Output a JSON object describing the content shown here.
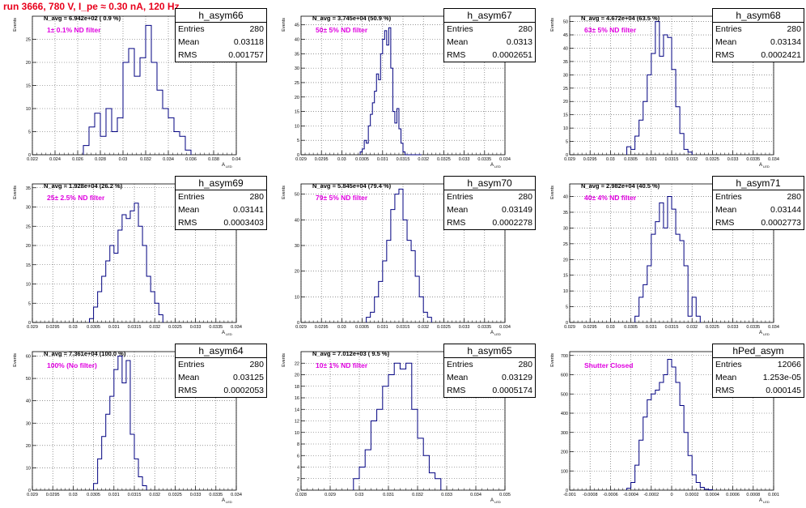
{
  "header": {
    "title": "run 3666,   780 V, I_pe ≈ 0.30 nA, 120 Hz"
  },
  "colors": {
    "title": "#e8001c",
    "filter_label": "#e000e0",
    "histogram": "#000080",
    "grid": "#555555"
  },
  "axis_label_y": "Events",
  "axis_label_x": "A",
  "axis_label_x_sub": "LED",
  "stats_labels": {
    "entries": "Entries",
    "mean": "Mean",
    "rms": "RMS"
  },
  "chart_data": [
    {
      "type": "histogram",
      "name": "h_asym66",
      "navg": "N_avg = 6.942e+02 ( 0.9 %)",
      "filter": "1± 0.1% ND filter",
      "entries": "280",
      "mean": "0.03118",
      "rms": "0.001757",
      "xlim": [
        0.022,
        0.04
      ],
      "ylim": [
        0,
        30
      ],
      "xticks": [
        0.022,
        0.024,
        0.026,
        0.028,
        0.03,
        0.032,
        0.034,
        0.036,
        0.038,
        0.04
      ],
      "xtick_labels": [
        "0.022",
        "0.024",
        "0.026",
        "0.028",
        "0.03",
        "0.032",
        "0.034",
        "0.036",
        "0.038",
        "0.04"
      ],
      "yticks": [
        0,
        5,
        10,
        15,
        20,
        25
      ],
      "ytick_labels": [
        "0",
        "5",
        "10",
        "15",
        "20",
        "25"
      ],
      "bin_edges": [
        0.0265,
        0.027,
        0.0275,
        0.028,
        0.0285,
        0.029,
        0.0295,
        0.03,
        0.0305,
        0.031,
        0.0315,
        0.032,
        0.0325,
        0.033,
        0.0335,
        0.034,
        0.0345,
        0.035,
        0.0355,
        0.036
      ],
      "counts": [
        2,
        6,
        9,
        4,
        10,
        5,
        8,
        20,
        23,
        17,
        21,
        28,
        20,
        14,
        10,
        8,
        5,
        4,
        1
      ]
    },
    {
      "type": "histogram",
      "name": "h_asym67",
      "navg": "N_avg = 3.745e+04 (50.9 %)",
      "filter": "50± 5% ND filter",
      "entries": "280",
      "mean": "0.0313",
      "rms": "0.0002651",
      "xlim": [
        0.029,
        0.034
      ],
      "ylim": [
        0,
        48
      ],
      "xticks": [
        0.029,
        0.0295,
        0.03,
        0.0305,
        0.031,
        0.0315,
        0.032,
        0.0325,
        0.033,
        0.0335,
        0.034
      ],
      "xtick_labels": [
        "0.029",
        "0.0295",
        "0.03",
        "0.0305",
        "0.031",
        "0.0315",
        "0.032",
        "0.0325",
        "0.033",
        "0.0335",
        "0.034"
      ],
      "yticks": [
        0,
        5,
        10,
        15,
        20,
        25,
        30,
        35,
        40,
        45
      ],
      "ytick_labels": [
        "0",
        "5",
        "10",
        "15",
        "20",
        "25",
        "30",
        "35",
        "40",
        "45"
      ],
      "bin_edges": [
        0.03045,
        0.0305,
        0.03055,
        0.0306,
        0.03065,
        0.0307,
        0.03075,
        0.0308,
        0.03085,
        0.0309,
        0.03095,
        0.031,
        0.03105,
        0.0311,
        0.03115,
        0.0312,
        0.03125,
        0.0313,
        0.03135,
        0.0314,
        0.03145,
        0.0315,
        0.03155,
        0.0316,
        0.03165,
        0.0317,
        0.03175,
        0.0318,
        0.03185,
        0.0319,
        0.03195
      ],
      "counts": [
        1,
        2,
        5,
        4,
        10,
        14,
        18,
        22,
        28,
        26,
        35,
        40,
        43,
        38,
        44,
        30,
        15,
        11,
        16,
        9,
        4,
        1,
        0,
        0,
        0,
        0,
        0,
        0,
        0,
        0
      ]
    },
    {
      "type": "histogram",
      "name": "h_asym68",
      "navg": "N_avg = 4.672e+04 (63.5 %)",
      "filter": "63± 5% ND filter",
      "entries": "280",
      "mean": "0.03134",
      "rms": "0.0002421",
      "xlim": [
        0.029,
        0.034
      ],
      "ylim": [
        0,
        52
      ],
      "xticks": [
        0.029,
        0.0295,
        0.03,
        0.0305,
        0.031,
        0.0315,
        0.032,
        0.0325,
        0.033,
        0.0335,
        0.034
      ],
      "xtick_labels": [
        "0.029",
        "0.0295",
        "0.03",
        "0.0305",
        "0.031",
        "0.0315",
        "0.032",
        "0.0325",
        "0.033",
        "0.0335",
        "0.034"
      ],
      "yticks": [
        0,
        5,
        10,
        15,
        20,
        25,
        30,
        35,
        40,
        45,
        50
      ],
      "ytick_labels": [
        "0",
        "5",
        "10",
        "15",
        "20",
        "25",
        "30",
        "35",
        "40",
        "45",
        "50"
      ],
      "bin_edges": [
        0.0304,
        0.0305,
        0.0306,
        0.0307,
        0.0308,
        0.0309,
        0.031,
        0.0311,
        0.0312,
        0.0313,
        0.0314,
        0.0315,
        0.0316,
        0.0317,
        0.0318,
        0.0319,
        0.032
      ],
      "counts": [
        3,
        2,
        7,
        13,
        20,
        30,
        38,
        50,
        37,
        45,
        44,
        32,
        18,
        8,
        2,
        1
      ]
    },
    {
      "type": "histogram",
      "name": "h_asym69",
      "navg": "N_avg = 1.928e+04 (26.2 %)",
      "filter": "25± 2.5% ND filter",
      "entries": "280",
      "mean": "0.03141",
      "rms": "0.0003403",
      "xlim": [
        0.029,
        0.034
      ],
      "ylim": [
        0,
        36
      ],
      "xticks": [
        0.029,
        0.0295,
        0.03,
        0.0305,
        0.031,
        0.0315,
        0.032,
        0.0325,
        0.033,
        0.0335,
        0.034
      ],
      "xtick_labels": [
        "0.029",
        "0.0295",
        "0.03",
        "0.0305",
        "0.031",
        "0.0315",
        "0.032",
        "0.0325",
        "0.033",
        "0.0335",
        "0.034"
      ],
      "yticks": [
        0,
        5,
        10,
        15,
        20,
        25,
        30,
        35
      ],
      "ytick_labels": [
        "0",
        "5",
        "10",
        "15",
        "20",
        "25",
        "30",
        "35"
      ],
      "bin_edges": [
        0.0304,
        0.0305,
        0.0306,
        0.0307,
        0.0308,
        0.0309,
        0.031,
        0.0311,
        0.0312,
        0.0313,
        0.0314,
        0.0315,
        0.0316,
        0.0317,
        0.0318,
        0.0319,
        0.032,
        0.0321,
        0.0322
      ],
      "counts": [
        1,
        4,
        8,
        12,
        16,
        20,
        18,
        24,
        28,
        27,
        29,
        31,
        25,
        20,
        12,
        8,
        5,
        2
      ]
    },
    {
      "type": "histogram",
      "name": "h_asym70",
      "navg": "N_avg = 5.845e+04 (79.4 %)",
      "filter": "79± 5% ND filter",
      "entries": "280",
      "mean": "0.03149",
      "rms": "0.0002278",
      "xlim": [
        0.029,
        0.034
      ],
      "ylim": [
        0,
        54
      ],
      "xticks": [
        0.029,
        0.0295,
        0.03,
        0.0305,
        0.031,
        0.0315,
        0.032,
        0.0325,
        0.033,
        0.0335,
        0.034
      ],
      "xtick_labels": [
        "0.029",
        "0.0295",
        "0.03",
        "0.0305",
        "0.031",
        "0.0315",
        "0.032",
        "0.0325",
        "0.033",
        "0.0335",
        "0.034"
      ],
      "yticks": [
        0,
        10,
        20,
        30,
        40,
        50
      ],
      "ytick_labels": [
        "0",
        "10",
        "20",
        "30",
        "40",
        "50"
      ],
      "bin_edges": [
        0.0306,
        0.0307,
        0.0308,
        0.0309,
        0.031,
        0.0311,
        0.0312,
        0.0313,
        0.0314,
        0.0315,
        0.0316,
        0.0317,
        0.0318,
        0.0319,
        0.032,
        0.0321,
        0.0322
      ],
      "counts": [
        2,
        4,
        10,
        16,
        24,
        32,
        44,
        50,
        52,
        40,
        32,
        28,
        18,
        10,
        4,
        2
      ]
    },
    {
      "type": "histogram",
      "name": "h_asym71",
      "navg": "N_avg = 2.982e+04 (40.5 %)",
      "filter": "40± 4% ND filter",
      "entries": "280",
      "mean": "0.03144",
      "rms": "0.0002773",
      "xlim": [
        0.029,
        0.034
      ],
      "ylim": [
        0,
        44
      ],
      "xticks": [
        0.029,
        0.0295,
        0.03,
        0.0305,
        0.031,
        0.0315,
        0.032,
        0.0325,
        0.033,
        0.0335,
        0.034
      ],
      "xtick_labels": [
        "0.029",
        "0.0295",
        "0.03",
        "0.0305",
        "0.031",
        "0.0315",
        "0.032",
        "0.0325",
        "0.033",
        "0.0335",
        "0.034"
      ],
      "yticks": [
        0,
        5,
        10,
        15,
        20,
        25,
        30,
        35,
        40
      ],
      "ytick_labels": [
        "0",
        "5",
        "10",
        "15",
        "20",
        "25",
        "30",
        "35",
        "40"
      ],
      "bin_edges": [
        0.0306,
        0.0307,
        0.0308,
        0.0309,
        0.031,
        0.0311,
        0.0312,
        0.0313,
        0.0314,
        0.0315,
        0.0316,
        0.0317,
        0.0318,
        0.0319,
        0.032,
        0.0321,
        0.0322
      ],
      "counts": [
        2,
        8,
        12,
        18,
        28,
        32,
        38,
        30,
        40,
        36,
        28,
        26,
        18,
        2,
        8,
        2
      ]
    },
    {
      "type": "histogram",
      "name": "h_asym64",
      "navg": "N_avg = 7.361e+04 (100.0 %)",
      "filter": "100% (No filter)",
      "entries": "280",
      "mean": "0.03125",
      "rms": "0.0002053",
      "xlim": [
        0.029,
        0.034
      ],
      "ylim": [
        0,
        62
      ],
      "xticks": [
        0.029,
        0.0295,
        0.03,
        0.0305,
        0.031,
        0.0315,
        0.032,
        0.0325,
        0.033,
        0.0335,
        0.034
      ],
      "xtick_labels": [
        "0.029",
        "0.0295",
        "0.03",
        "0.0305",
        "0.031",
        "0.0315",
        "0.032",
        "0.0325",
        "0.033",
        "0.0335",
        "0.034"
      ],
      "yticks": [
        0,
        10,
        20,
        30,
        40,
        50,
        60
      ],
      "ytick_labels": [
        "0",
        "10",
        "20",
        "30",
        "40",
        "50",
        "60"
      ],
      "bin_edges": [
        0.0305,
        0.0306,
        0.0307,
        0.0308,
        0.0309,
        0.031,
        0.0311,
        0.0312,
        0.0313,
        0.0314,
        0.0315,
        0.0316,
        0.0317,
        0.0318
      ],
      "counts": [
        3,
        14,
        24,
        34,
        42,
        54,
        60,
        48,
        58,
        25,
        14,
        6,
        2
      ]
    },
    {
      "type": "histogram",
      "name": "h_asym65",
      "navg": "N_avg = 7.012e+03 ( 9.5 %)",
      "filter": "10± 1% ND filter",
      "entries": "280",
      "mean": "0.03129",
      "rms": "0.0005174",
      "xlim": [
        0.028,
        0.035
      ],
      "ylim": [
        0,
        24
      ],
      "xticks": [
        0.028,
        0.029,
        0.03,
        0.031,
        0.032,
        0.033,
        0.034,
        0.035
      ],
      "xtick_labels": [
        "0.028",
        "0.029",
        "0.03",
        "0.031",
        "0.032",
        "0.033",
        "0.034",
        "0.035"
      ],
      "yticks": [
        0,
        2,
        4,
        6,
        8,
        10,
        12,
        14,
        16,
        18,
        20,
        22
      ],
      "ytick_labels": [
        "0",
        "2",
        "4",
        "6",
        "8",
        "10",
        "12",
        "14",
        "16",
        "18",
        "20",
        "22"
      ],
      "bin_edges": [
        0.0298,
        0.03,
        0.0302,
        0.0304,
        0.0306,
        0.0308,
        0.031,
        0.0312,
        0.0314,
        0.0316,
        0.0318,
        0.032,
        0.0322,
        0.0324,
        0.0326,
        0.0328
      ],
      "counts": [
        2,
        4,
        7,
        12,
        14,
        18,
        20,
        22,
        21,
        22,
        14,
        9,
        6,
        3,
        2
      ]
    },
    {
      "type": "histogram",
      "name": "hPed_asym",
      "navg": "",
      "filter": "Shutter Closed",
      "entries": "12066",
      "mean": "1.253e-05",
      "rms": "0.000145",
      "xlim": [
        -0.001,
        0.001
      ],
      "ylim": [
        0,
        720
      ],
      "xticks": [
        -0.001,
        -0.0008,
        -0.0006,
        -0.0004,
        -0.0002,
        0,
        0.0002,
        0.0004,
        0.0006,
        0.0008,
        0.001
      ],
      "xtick_labels": [
        "-0.001",
        "-0.0008",
        "-0.0006",
        "-0.0004",
        "-0.0002",
        "0",
        "0.0002",
        "0.0004",
        "0.0006",
        "0.0008",
        "0.001"
      ],
      "yticks": [
        0,
        100,
        200,
        300,
        400,
        500,
        600,
        700
      ],
      "ytick_labels": [
        "0",
        "100",
        "200",
        "300",
        "400",
        "500",
        "600",
        "700"
      ],
      "bin_edges": [
        -0.00044,
        -0.0004,
        -0.00036,
        -0.00032,
        -0.00028,
        -0.00024,
        -0.0002,
        -0.00016,
        -0.00012,
        -8e-05,
        -4e-05,
        0,
        4e-05,
        8e-05,
        0.00012,
        0.00016,
        0.0002,
        0.00024,
        0.00028,
        0.00032,
        0.00036,
        0.0004
      ],
      "counts": [
        10,
        40,
        130,
        260,
        380,
        470,
        500,
        520,
        560,
        600,
        680,
        640,
        560,
        440,
        300,
        180,
        80,
        40,
        15,
        5,
        2
      ]
    }
  ]
}
